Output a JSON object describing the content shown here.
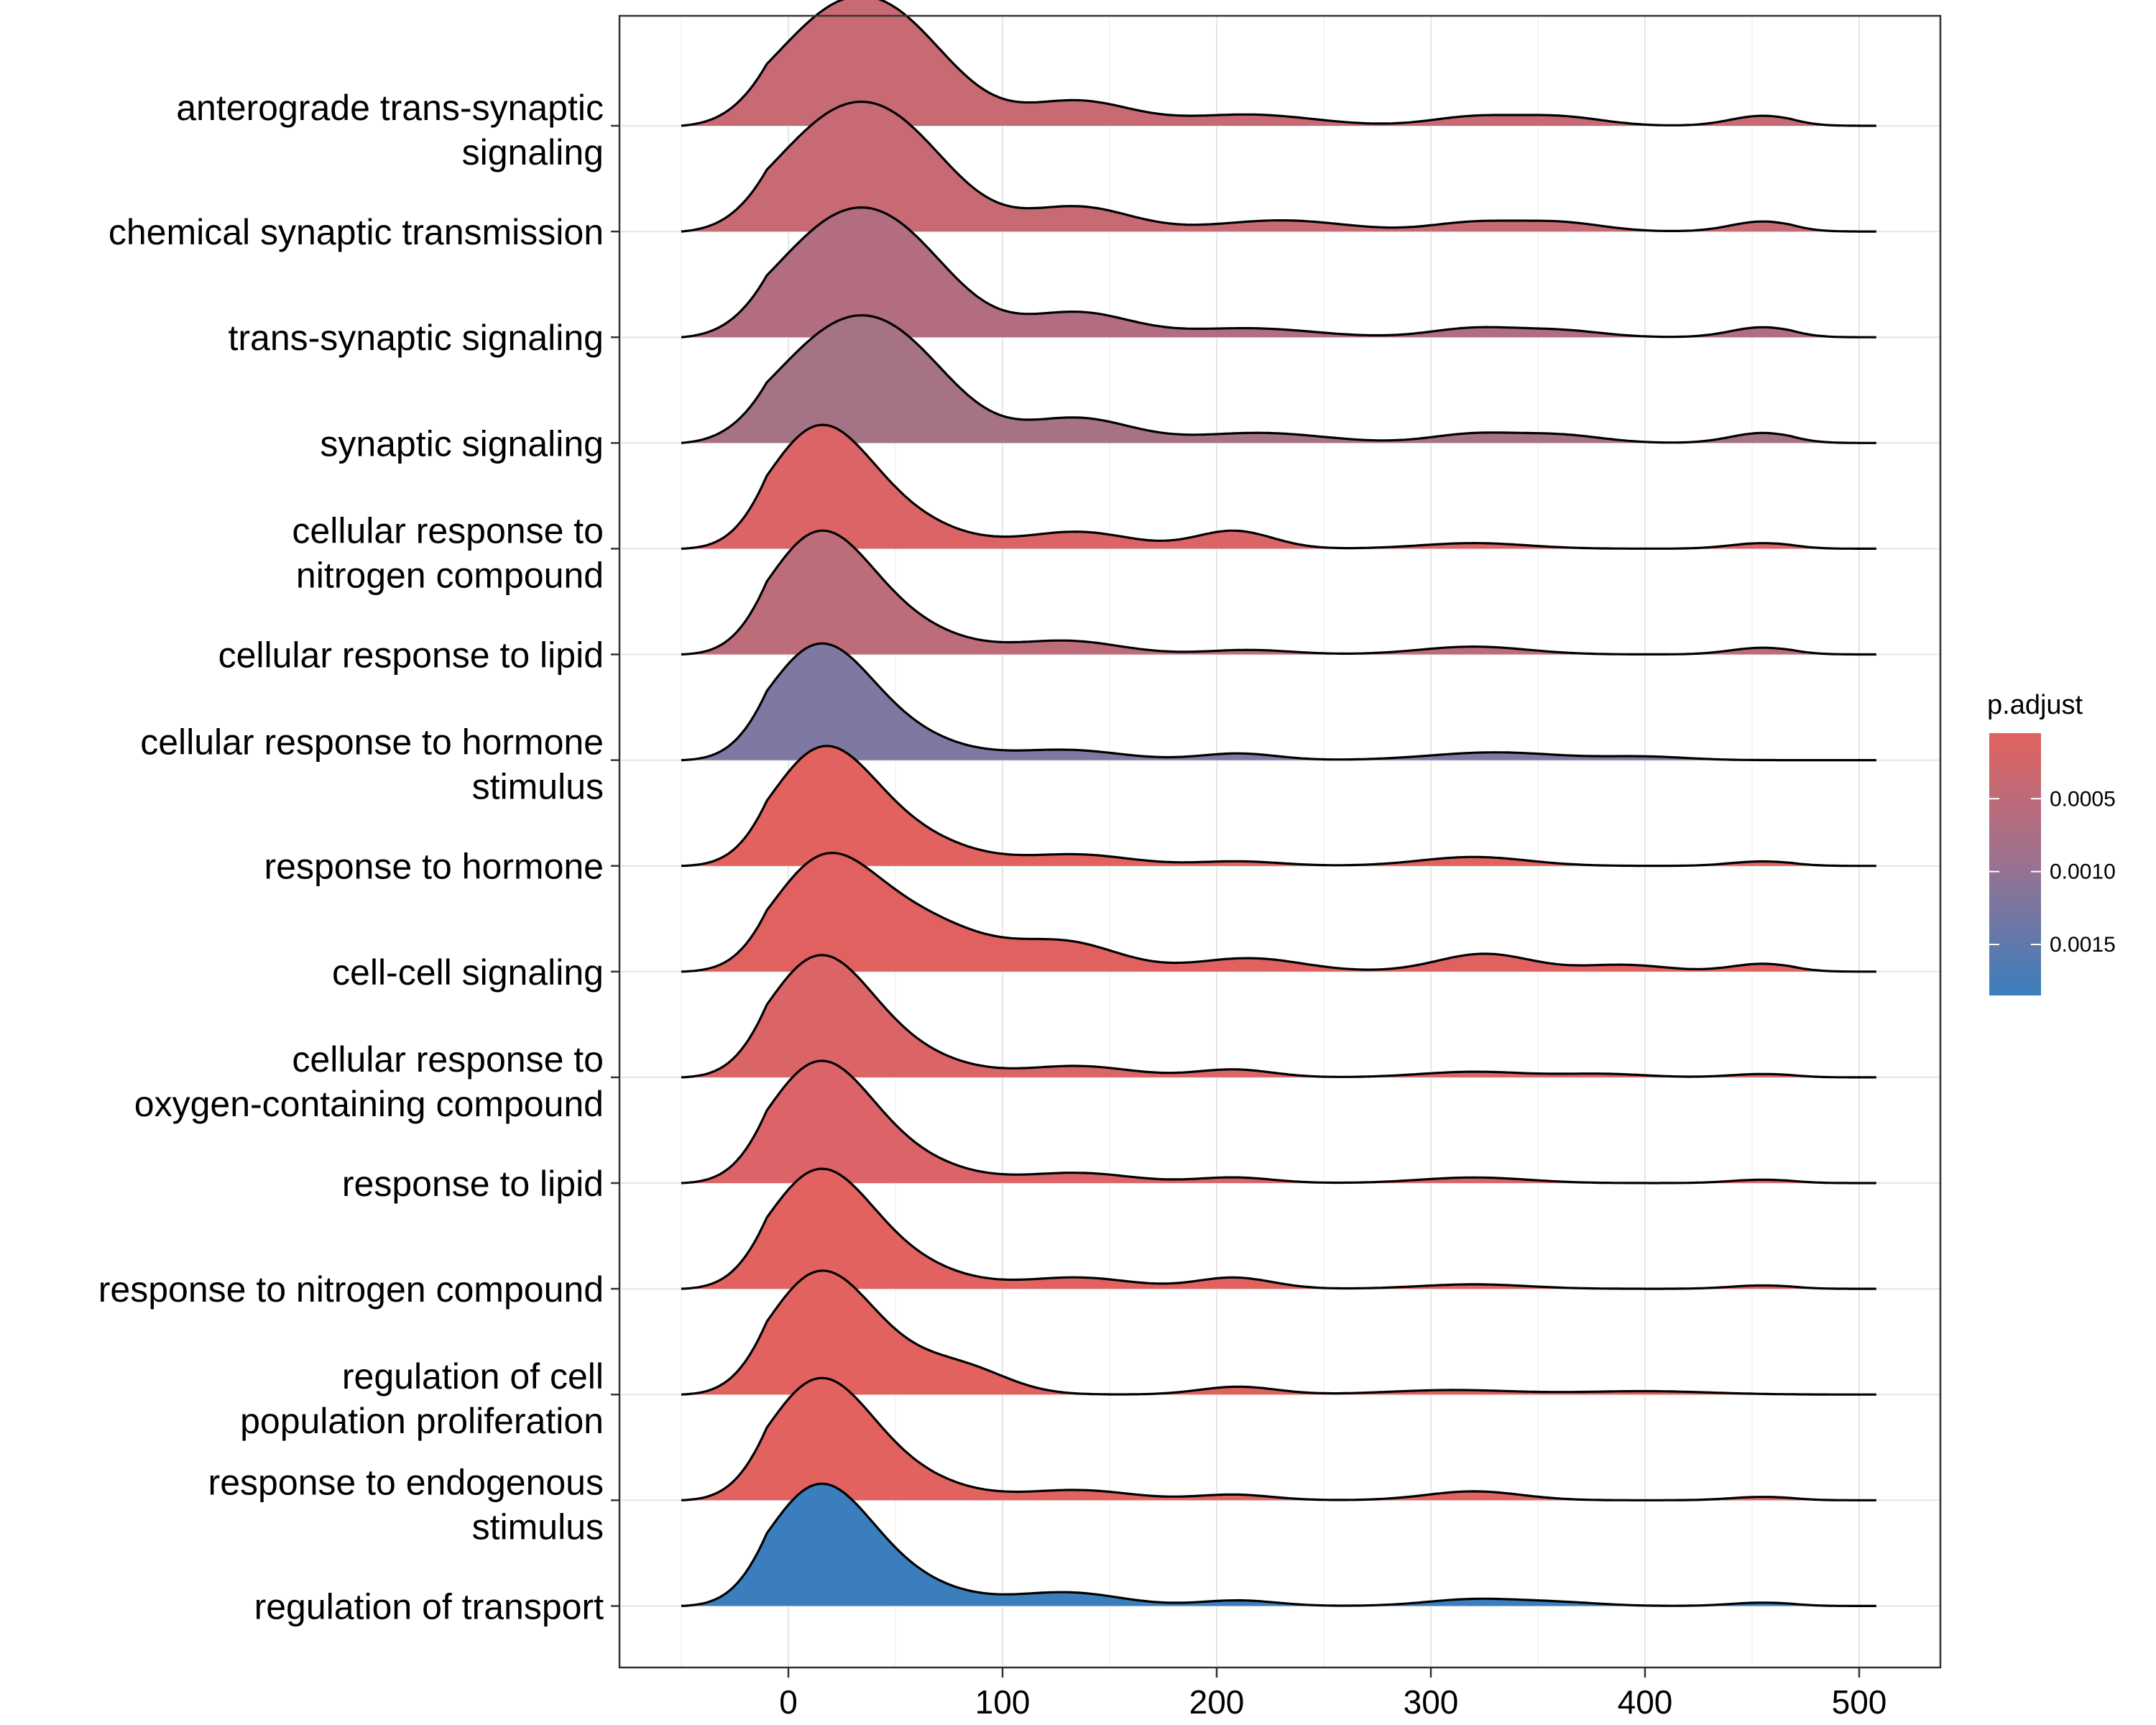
{
  "chart_data": {
    "type": "ridgeline",
    "xlim": [
      -55,
      515
    ],
    "x_ticks": [
      0,
      100,
      200,
      300,
      400,
      500
    ],
    "grid": true,
    "legend": {
      "title": "p.adjust",
      "position": "right",
      "range": [
        5e-05,
        0.00185
      ],
      "ticks": [
        {
          "value": 0.0005,
          "label": "0.0005"
        },
        {
          "value": 0.001,
          "label": "0.0010"
        },
        {
          "value": 0.0015,
          "label": "0.0015"
        }
      ],
      "color_low": "#E2625F",
      "color_high": "#3A7EBD"
    },
    "series": [
      {
        "label": [
          "anterograde trans-synaptic",
          "signaling"
        ],
        "p_adjust": 0.00055,
        "color": "#C86A73",
        "peaks": [
          [
            25,
            1.0,
            32
          ],
          [
            60,
            0.35,
            25
          ],
          [
            135,
            0.22,
            25
          ],
          [
            215,
            0.1,
            30
          ],
          [
            320,
            0.08,
            20
          ],
          [
            360,
            0.08,
            20
          ],
          [
            455,
            0.09,
            15
          ]
        ]
      },
      {
        "label": [
          "chemical synaptic transmission"
        ],
        "p_adjust": 0.00055,
        "color": "#C86A73",
        "peaks": [
          [
            25,
            1.0,
            32
          ],
          [
            60,
            0.35,
            25
          ],
          [
            135,
            0.22,
            25
          ],
          [
            230,
            0.1,
            30
          ],
          [
            320,
            0.08,
            20
          ],
          [
            360,
            0.08,
            20
          ],
          [
            455,
            0.09,
            15
          ]
        ]
      },
      {
        "label": [
          "trans-synaptic signaling"
        ],
        "p_adjust": 0.00075,
        "color": "#B26D80",
        "peaks": [
          [
            25,
            1.0,
            32
          ],
          [
            60,
            0.35,
            25
          ],
          [
            135,
            0.22,
            25
          ],
          [
            215,
            0.08,
            30
          ],
          [
            320,
            0.08,
            20
          ],
          [
            360,
            0.06,
            20
          ],
          [
            455,
            0.09,
            15
          ]
        ]
      },
      {
        "label": [
          "synaptic signaling"
        ],
        "p_adjust": 0.00085,
        "color": "#A67285",
        "peaks": [
          [
            25,
            0.98,
            32
          ],
          [
            60,
            0.35,
            25
          ],
          [
            135,
            0.22,
            25
          ],
          [
            220,
            0.09,
            30
          ],
          [
            320,
            0.08,
            20
          ],
          [
            360,
            0.07,
            20
          ],
          [
            455,
            0.09,
            15
          ]
        ]
      },
      {
        "label": [
          "cellular response to",
          "nitrogen compound"
        ],
        "p_adjust": 0.0001,
        "color": "#DB6467",
        "peaks": [
          [
            13,
            1.0,
            24
          ],
          [
            50,
            0.25,
            28
          ],
          [
            135,
            0.15,
            25
          ],
          [
            208,
            0.16,
            18
          ],
          [
            320,
            0.05,
            25
          ],
          [
            455,
            0.05,
            15
          ]
        ]
      },
      {
        "label": [
          "cellular response to lipid"
        ],
        "p_adjust": 0.00065,
        "color": "#BD6D7A",
        "peaks": [
          [
            13,
            1.0,
            24
          ],
          [
            50,
            0.25,
            28
          ],
          [
            130,
            0.12,
            25
          ],
          [
            215,
            0.04,
            20
          ],
          [
            320,
            0.07,
            25
          ],
          [
            455,
            0.06,
            15
          ]
        ]
      },
      {
        "label": [
          "cellular response to hormone",
          "stimulus"
        ],
        "p_adjust": 0.00125,
        "color": "#7F78A2",
        "peaks": [
          [
            13,
            0.95,
            24
          ],
          [
            50,
            0.22,
            28
          ],
          [
            130,
            0.09,
            25
          ],
          [
            210,
            0.06,
            18
          ],
          [
            330,
            0.07,
            30
          ],
          [
            400,
            0.03,
            20
          ]
        ]
      },
      {
        "label": [
          "response to hormone"
        ],
        "p_adjust": 5e-05,
        "color": "#E2625F",
        "peaks": [
          [
            15,
            0.98,
            24
          ],
          [
            55,
            0.25,
            28
          ],
          [
            135,
            0.1,
            25
          ],
          [
            210,
            0.04,
            20
          ],
          [
            320,
            0.08,
            25
          ],
          [
            455,
            0.04,
            15
          ]
        ]
      },
      {
        "label": [
          "cell-cell signaling"
        ],
        "p_adjust": 0.0001,
        "color": "#E0615F",
        "peaks": [
          [
            15,
            0.9,
            24
          ],
          [
            60,
            0.45,
            30
          ],
          [
            130,
            0.25,
            25
          ],
          [
            215,
            0.12,
            25
          ],
          [
            325,
            0.16,
            22
          ],
          [
            390,
            0.06,
            20
          ],
          [
            455,
            0.07,
            15
          ]
        ]
      },
      {
        "label": [
          "cellular response to",
          "oxygen-containing compound"
        ],
        "p_adjust": 0.0001,
        "color": "#DB6467",
        "peaks": [
          [
            13,
            1.0,
            24
          ],
          [
            50,
            0.22,
            28
          ],
          [
            135,
            0.1,
            25
          ],
          [
            208,
            0.07,
            18
          ],
          [
            320,
            0.05,
            25
          ],
          [
            380,
            0.03,
            20
          ],
          [
            455,
            0.03,
            15
          ]
        ]
      },
      {
        "label": [
          "response to lipid"
        ],
        "p_adjust": 0.0001,
        "color": "#DC6368",
        "peaks": [
          [
            13,
            1.0,
            24
          ],
          [
            50,
            0.22,
            28
          ],
          [
            135,
            0.09,
            25
          ],
          [
            208,
            0.05,
            18
          ],
          [
            320,
            0.05,
            25
          ],
          [
            455,
            0.03,
            15
          ]
        ]
      },
      {
        "label": [
          "response to nitrogen compound"
        ],
        "p_adjust": 5e-05,
        "color": "#E2625F",
        "peaks": [
          [
            13,
            0.98,
            24
          ],
          [
            50,
            0.22,
            28
          ],
          [
            135,
            0.1,
            25
          ],
          [
            208,
            0.1,
            18
          ],
          [
            320,
            0.04,
            25
          ],
          [
            455,
            0.03,
            15
          ]
        ]
      },
      {
        "label": [
          "regulation of cell",
          "population proliferation"
        ],
        "p_adjust": 5e-05,
        "color": "#E2625F",
        "peaks": [
          [
            13,
            1.0,
            24
          ],
          [
            50,
            0.25,
            28
          ],
          [
            85,
            0.15,
            20
          ],
          [
            210,
            0.07,
            18
          ],
          [
            310,
            0.04,
            30
          ],
          [
            400,
            0.03,
            30
          ]
        ]
      },
      {
        "label": [
          "response to endogenous",
          "stimulus"
        ],
        "p_adjust": 5e-05,
        "color": "#E2625F",
        "peaks": [
          [
            13,
            1.0,
            24
          ],
          [
            50,
            0.22,
            28
          ],
          [
            135,
            0.09,
            25
          ],
          [
            208,
            0.05,
            18
          ],
          [
            320,
            0.08,
            22
          ],
          [
            455,
            0.03,
            15
          ]
        ]
      },
      {
        "label": [
          "regulation of transport"
        ],
        "p_adjust": 0.00185,
        "color": "#3A7EBD",
        "peaks": [
          [
            13,
            1.0,
            24
          ],
          [
            50,
            0.22,
            28
          ],
          [
            130,
            0.12,
            25
          ],
          [
            210,
            0.05,
            18
          ],
          [
            320,
            0.06,
            22
          ],
          [
            360,
            0.03,
            20
          ],
          [
            455,
            0.03,
            15
          ]
        ]
      }
    ]
  }
}
